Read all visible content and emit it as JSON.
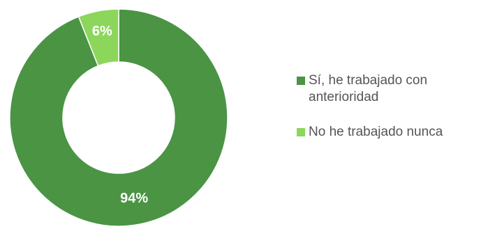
{
  "chart_data": {
    "type": "pie",
    "variant": "donut",
    "categories": [
      "Sí, he trabajado con anterioridad",
      "No he trabajado nunca"
    ],
    "values": [
      94,
      6
    ],
    "data_labels": [
      "94%",
      "6%"
    ],
    "colors": [
      "#4a9444",
      "#8dd65c"
    ],
    "legend_position": "right",
    "title": ""
  }
}
